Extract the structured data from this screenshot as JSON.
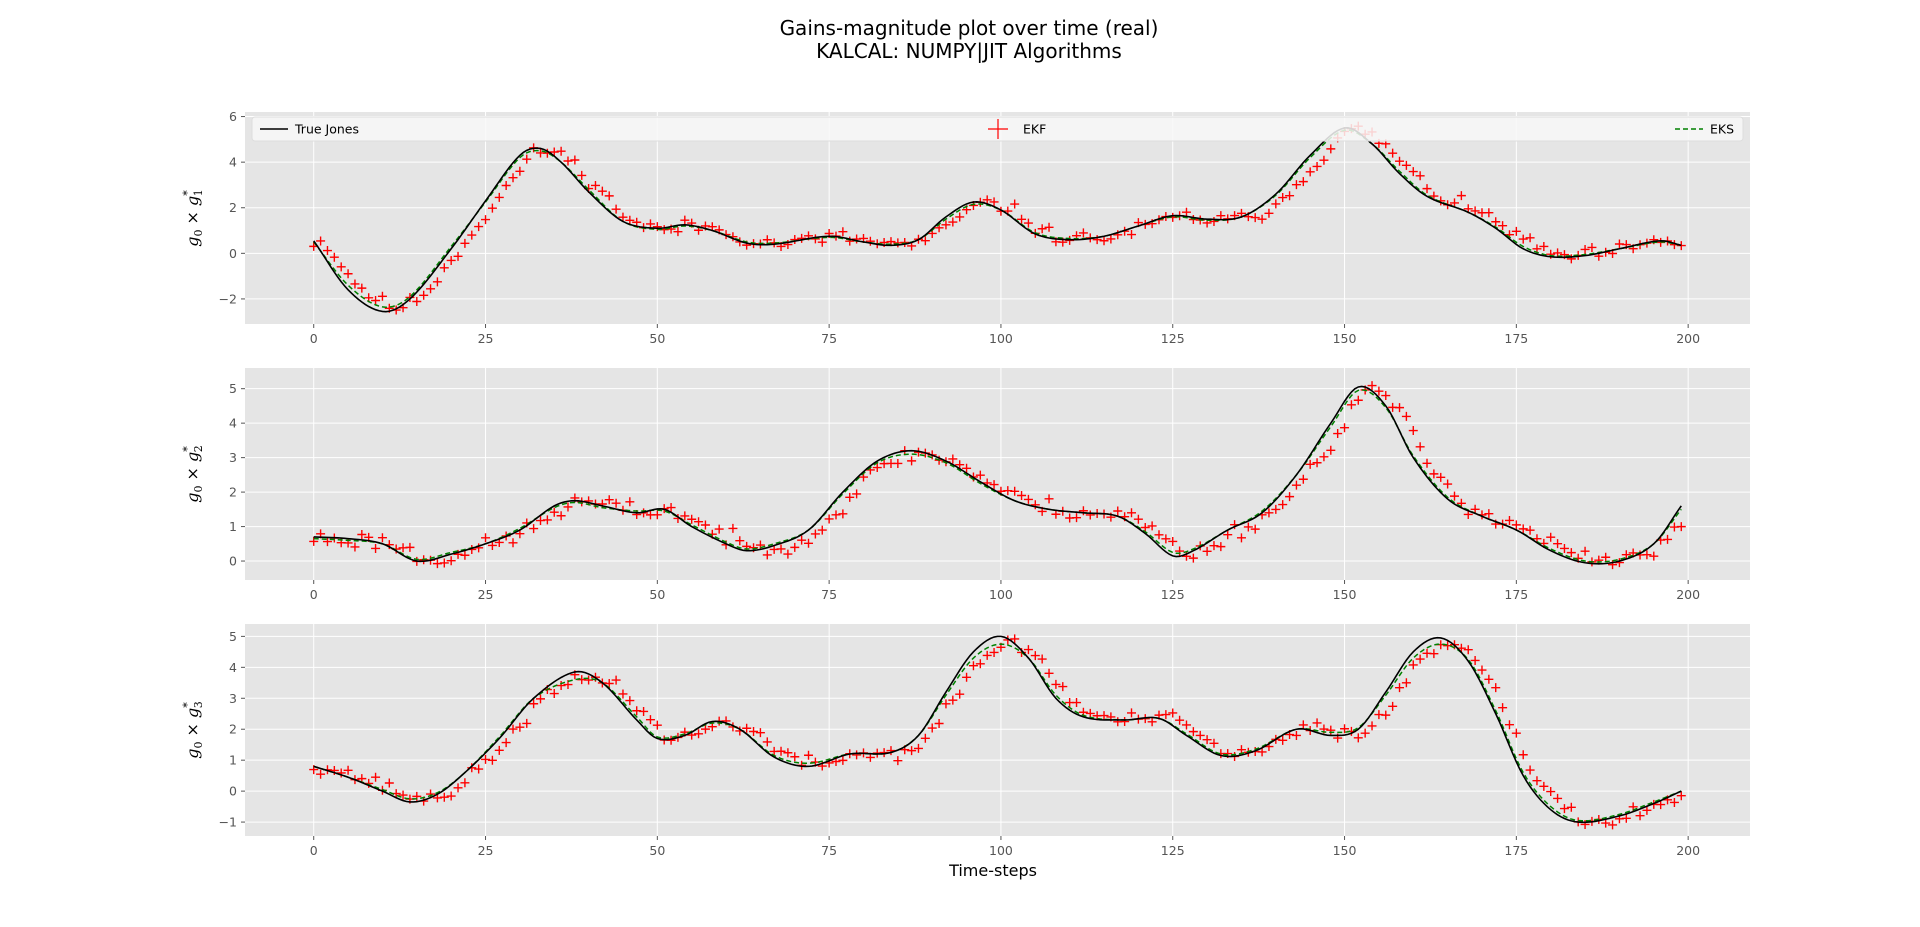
{
  "figure": {
    "title_line1": "Gains-magnitude plot over time (real)",
    "title_line2": "KALCAL: NUMPY|JIT Algorithms",
    "xlabel": "Time-steps"
  },
  "colors": {
    "axes_bg": "#e5e5e5",
    "grid": "#ffffff",
    "true_jones": "#000000",
    "ekf": "#ff0000",
    "eks": "#008000",
    "tick_text": "#555555"
  },
  "legend": {
    "location": "top, full width (first panel)",
    "entries": [
      "True Jones",
      "EKF",
      "EKS"
    ]
  },
  "chart_data": [
    {
      "type": "line",
      "ylabel_parts": [
        "g",
        "0",
        "×",
        "g",
        "1",
        "*"
      ],
      "xlim": [
        -10,
        209
      ],
      "ylim": [
        -3.1,
        6.2
      ],
      "xticks": [
        0,
        25,
        50,
        75,
        100,
        125,
        150,
        175,
        200
      ],
      "yticks": [
        -2,
        0,
        2,
        4,
        6
      ],
      "true_anchors": [
        [
          0,
          0.55
        ],
        [
          5,
          -1.6
        ],
        [
          10,
          -2.55
        ],
        [
          14,
          -2.0
        ],
        [
          20,
          0.2
        ],
        [
          25,
          2.3
        ],
        [
          30,
          4.3
        ],
        [
          33,
          4.6
        ],
        [
          36,
          4.0
        ],
        [
          40,
          2.7
        ],
        [
          45,
          1.4
        ],
        [
          50,
          1.1
        ],
        [
          54,
          1.25
        ],
        [
          58,
          1.0
        ],
        [
          63,
          0.45
        ],
        [
          67,
          0.4
        ],
        [
          75,
          0.75
        ],
        [
          80,
          0.5
        ],
        [
          84,
          0.35
        ],
        [
          88,
          0.6
        ],
        [
          92,
          1.6
        ],
        [
          96,
          2.25
        ],
        [
          100,
          1.9
        ],
        [
          105,
          0.85
        ],
        [
          110,
          0.6
        ],
        [
          115,
          0.75
        ],
        [
          120,
          1.2
        ],
        [
          125,
          1.65
        ],
        [
          130,
          1.5
        ],
        [
          135,
          1.6
        ],
        [
          140,
          2.6
        ],
        [
          145,
          4.3
        ],
        [
          150,
          5.5
        ],
        [
          154,
          4.8
        ],
        [
          158,
          3.5
        ],
        [
          162,
          2.5
        ],
        [
          168,
          1.8
        ],
        [
          172,
          1.1
        ],
        [
          176,
          0.2
        ],
        [
          180,
          -0.15
        ],
        [
          185,
          -0.1
        ],
        [
          190,
          0.2
        ],
        [
          196,
          0.55
        ],
        [
          199,
          0.35
        ]
      ],
      "eks_anchors": [
        [
          0,
          0.5
        ],
        [
          5,
          -1.4
        ],
        [
          10,
          -2.35
        ],
        [
          14,
          -1.9
        ],
        [
          20,
          0.3
        ],
        [
          25,
          2.25
        ],
        [
          30,
          4.2
        ],
        [
          33,
          4.5
        ],
        [
          36,
          4.0
        ],
        [
          40,
          2.8
        ],
        [
          45,
          1.4
        ],
        [
          50,
          1.05
        ],
        [
          54,
          1.2
        ],
        [
          58,
          1.0
        ],
        [
          63,
          0.5
        ],
        [
          67,
          0.45
        ],
        [
          75,
          0.7
        ],
        [
          80,
          0.5
        ],
        [
          84,
          0.4
        ],
        [
          88,
          0.6
        ],
        [
          92,
          1.5
        ],
        [
          96,
          2.15
        ],
        [
          100,
          1.9
        ],
        [
          105,
          0.9
        ],
        [
          110,
          0.65
        ],
        [
          115,
          0.75
        ],
        [
          120,
          1.2
        ],
        [
          125,
          1.6
        ],
        [
          130,
          1.45
        ],
        [
          135,
          1.6
        ],
        [
          140,
          2.55
        ],
        [
          145,
          4.2
        ],
        [
          150,
          5.4
        ],
        [
          154,
          4.8
        ],
        [
          158,
          3.6
        ],
        [
          162,
          2.55
        ],
        [
          168,
          1.8
        ],
        [
          172,
          1.15
        ],
        [
          176,
          0.3
        ],
        [
          180,
          -0.1
        ],
        [
          185,
          -0.05
        ],
        [
          190,
          0.2
        ],
        [
          196,
          0.5
        ],
        [
          199,
          0.35
        ]
      ],
      "ekf_offset": 1.5,
      "ekf_noise": 0.22,
      "seed": 11
    },
    {
      "type": "line",
      "ylabel_parts": [
        "g",
        "0",
        "×",
        "g",
        "2",
        "*"
      ],
      "xlim": [
        -10,
        209
      ],
      "ylim": [
        -0.55,
        5.6
      ],
      "xticks": [
        0,
        25,
        50,
        75,
        100,
        125,
        150,
        175,
        200
      ],
      "yticks": [
        0,
        1,
        2,
        3,
        4,
        5
      ],
      "true_anchors": [
        [
          0,
          0.7
        ],
        [
          5,
          0.65
        ],
        [
          10,
          0.5
        ],
        [
          15,
          0.0
        ],
        [
          20,
          0.2
        ],
        [
          25,
          0.5
        ],
        [
          30,
          0.9
        ],
        [
          35,
          1.6
        ],
        [
          38,
          1.75
        ],
        [
          42,
          1.6
        ],
        [
          47,
          1.4
        ],
        [
          51,
          1.5
        ],
        [
          55,
          1.0
        ],
        [
          60,
          0.5
        ],
        [
          63,
          0.3
        ],
        [
          67,
          0.45
        ],
        [
          72,
          0.9
        ],
        [
          77,
          2.0
        ],
        [
          82,
          2.9
        ],
        [
          87,
          3.2
        ],
        [
          92,
          2.9
        ],
        [
          97,
          2.3
        ],
        [
          102,
          1.75
        ],
        [
          107,
          1.5
        ],
        [
          112,
          1.4
        ],
        [
          117,
          1.3
        ],
        [
          121,
          0.8
        ],
        [
          125,
          0.15
        ],
        [
          128,
          0.3
        ],
        [
          133,
          0.9
        ],
        [
          138,
          1.4
        ],
        [
          143,
          2.5
        ],
        [
          148,
          4.0
        ],
        [
          152,
          5.05
        ],
        [
          156,
          4.5
        ],
        [
          160,
          3.0
        ],
        [
          165,
          1.8
        ],
        [
          170,
          1.3
        ],
        [
          175,
          0.9
        ],
        [
          180,
          0.3
        ],
        [
          185,
          -0.05
        ],
        [
          190,
          0.0
        ],
        [
          195,
          0.5
        ],
        [
          199,
          1.6
        ]
      ],
      "eks_anchors": [
        [
          0,
          0.65
        ],
        [
          5,
          0.6
        ],
        [
          10,
          0.5
        ],
        [
          15,
          0.05
        ],
        [
          20,
          0.25
        ],
        [
          25,
          0.5
        ],
        [
          30,
          0.95
        ],
        [
          35,
          1.55
        ],
        [
          38,
          1.7
        ],
        [
          42,
          1.55
        ],
        [
          47,
          1.45
        ],
        [
          51,
          1.45
        ],
        [
          55,
          1.05
        ],
        [
          60,
          0.55
        ],
        [
          63,
          0.35
        ],
        [
          67,
          0.5
        ],
        [
          72,
          0.9
        ],
        [
          77,
          1.95
        ],
        [
          82,
          2.85
        ],
        [
          87,
          3.1
        ],
        [
          92,
          2.85
        ],
        [
          97,
          2.25
        ],
        [
          102,
          1.75
        ],
        [
          107,
          1.5
        ],
        [
          112,
          1.4
        ],
        [
          117,
          1.3
        ],
        [
          121,
          0.85
        ],
        [
          125,
          0.25
        ],
        [
          128,
          0.35
        ],
        [
          133,
          0.9
        ],
        [
          138,
          1.45
        ],
        [
          143,
          2.5
        ],
        [
          148,
          3.9
        ],
        [
          152,
          4.95
        ],
        [
          156,
          4.45
        ],
        [
          160,
          3.05
        ],
        [
          165,
          1.85
        ],
        [
          170,
          1.3
        ],
        [
          175,
          0.9
        ],
        [
          180,
          0.35
        ],
        [
          185,
          0.0
        ],
        [
          190,
          0.05
        ],
        [
          195,
          0.5
        ],
        [
          199,
          1.5
        ]
      ],
      "ekf_offset": 1.5,
      "ekf_noise": 0.18,
      "seed": 23
    },
    {
      "type": "line",
      "ylabel_parts": [
        "g",
        "0",
        "×",
        "g",
        "3",
        "*"
      ],
      "xlim": [
        -10,
        209
      ],
      "ylim": [
        -1.45,
        5.4
      ],
      "xticks": [
        0,
        25,
        50,
        75,
        100,
        125,
        150,
        175,
        200
      ],
      "yticks": [
        -1,
        0,
        1,
        2,
        3,
        4,
        5
      ],
      "true_anchors": [
        [
          0,
          0.8
        ],
        [
          5,
          0.45
        ],
        [
          10,
          0.0
        ],
        [
          14,
          -0.35
        ],
        [
          18,
          -0.1
        ],
        [
          22,
          0.6
        ],
        [
          27,
          1.7
        ],
        [
          32,
          3.0
        ],
        [
          38,
          3.85
        ],
        [
          42,
          3.5
        ],
        [
          47,
          2.3
        ],
        [
          50,
          1.7
        ],
        [
          54,
          1.8
        ],
        [
          58,
          2.25
        ],
        [
          62,
          2.0
        ],
        [
          67,
          1.1
        ],
        [
          72,
          0.8
        ],
        [
          78,
          1.2
        ],
        [
          84,
          1.25
        ],
        [
          88,
          1.8
        ],
        [
          92,
          3.2
        ],
        [
          96,
          4.5
        ],
        [
          100,
          5.0
        ],
        [
          104,
          4.3
        ],
        [
          108,
          3.0
        ],
        [
          112,
          2.4
        ],
        [
          118,
          2.3
        ],
        [
          123,
          2.35
        ],
        [
          127,
          1.8
        ],
        [
          132,
          1.15
        ],
        [
          137,
          1.3
        ],
        [
          143,
          2.0
        ],
        [
          148,
          1.8
        ],
        [
          152,
          2.0
        ],
        [
          156,
          3.2
        ],
        [
          160,
          4.5
        ],
        [
          164,
          4.95
        ],
        [
          168,
          4.2
        ],
        [
          172,
          2.5
        ],
        [
          176,
          0.5
        ],
        [
          180,
          -0.6
        ],
        [
          184,
          -1.0
        ],
        [
          190,
          -0.8
        ],
        [
          195,
          -0.4
        ],
        [
          199,
          0.0
        ]
      ],
      "eks_anchors": [
        [
          0,
          0.8
        ],
        [
          5,
          0.45
        ],
        [
          10,
          0.05
        ],
        [
          14,
          -0.25
        ],
        [
          18,
          -0.05
        ],
        [
          22,
          0.6
        ],
        [
          27,
          1.75
        ],
        [
          32,
          3.0
        ],
        [
          38,
          3.6
        ],
        [
          42,
          3.5
        ],
        [
          47,
          2.4
        ],
        [
          50,
          1.75
        ],
        [
          54,
          1.85
        ],
        [
          58,
          2.2
        ],
        [
          62,
          2.0
        ],
        [
          67,
          1.15
        ],
        [
          72,
          0.9
        ],
        [
          78,
          1.2
        ],
        [
          84,
          1.25
        ],
        [
          88,
          1.8
        ],
        [
          92,
          3.1
        ],
        [
          96,
          4.3
        ],
        [
          100,
          4.75
        ],
        [
          104,
          4.3
        ],
        [
          108,
          3.1
        ],
        [
          112,
          2.45
        ],
        [
          118,
          2.3
        ],
        [
          123,
          2.35
        ],
        [
          127,
          1.85
        ],
        [
          132,
          1.2
        ],
        [
          137,
          1.35
        ],
        [
          143,
          2.0
        ],
        [
          148,
          1.9
        ],
        [
          152,
          2.05
        ],
        [
          156,
          3.1
        ],
        [
          160,
          4.3
        ],
        [
          164,
          4.75
        ],
        [
          168,
          4.25
        ],
        [
          172,
          2.6
        ],
        [
          176,
          0.6
        ],
        [
          180,
          -0.5
        ],
        [
          184,
          -0.95
        ],
        [
          190,
          -0.75
        ],
        [
          195,
          -0.35
        ],
        [
          199,
          0.0
        ]
      ],
      "ekf_offset": 1.5,
      "ekf_noise": 0.16,
      "seed": 37
    }
  ]
}
